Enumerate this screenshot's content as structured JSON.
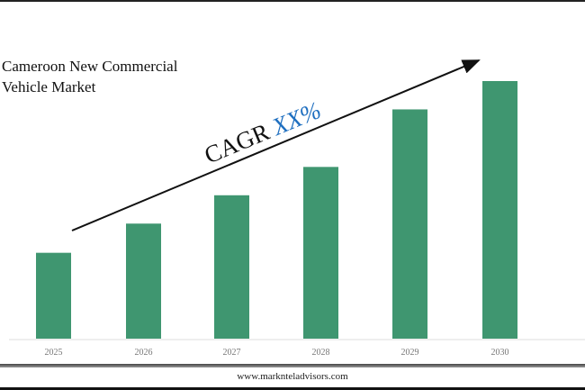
{
  "chart_data": {
    "type": "bar",
    "title": "Cameroon New Commercial Vehicle Market",
    "categories": [
      "2025",
      "2026",
      "2027",
      "2028",
      "2029",
      "2030"
    ],
    "values": [
      1.0,
      1.34,
      1.67,
      2.0,
      2.67,
      3.0
    ],
    "value_units": "relative (no y-axis printed)",
    "bar_color": "#3f9670",
    "grid": false,
    "annotation": {
      "text": "CAGR",
      "highlight": "XX%",
      "highlight_color": "#1f6fc0"
    }
  },
  "footer": "www.marknteladvisors.com"
}
